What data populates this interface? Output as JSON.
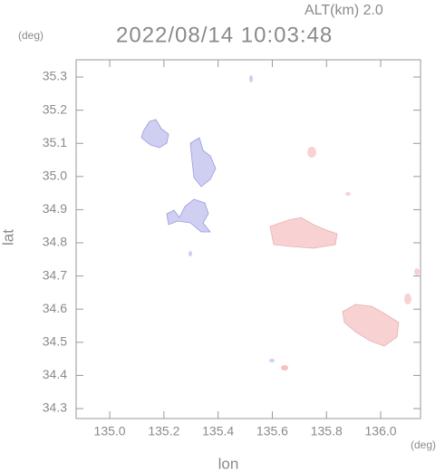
{
  "chart_data": {
    "type": "map",
    "title": "2022/08/14 10:03:48",
    "subtitle": "ALT(km) 2.0",
    "x_label": "lon",
    "y_label": "lat",
    "x_unit": "(deg)",
    "y_unit": "(deg)",
    "xlim": [
      134.876,
      136.147
    ],
    "ylim": [
      34.27,
      35.352
    ],
    "xticks": [
      {
        "value": 135.0,
        "label": "135.0"
      },
      {
        "value": 135.2,
        "label": "135.2"
      },
      {
        "value": 135.4,
        "label": "135.4"
      },
      {
        "value": 135.6,
        "label": "135.6"
      },
      {
        "value": 135.8,
        "label": "135.8"
      },
      {
        "value": 136.0,
        "label": "136.0"
      }
    ],
    "yticks": [
      {
        "value": 34.3,
        "label": "34.3"
      },
      34.4,
      34.5,
      34.6,
      34.7,
      34.8,
      34.9,
      {
        "value": 35.0,
        "label": "35.0"
      },
      35.1,
      35.2,
      35.3
    ]
  }
}
